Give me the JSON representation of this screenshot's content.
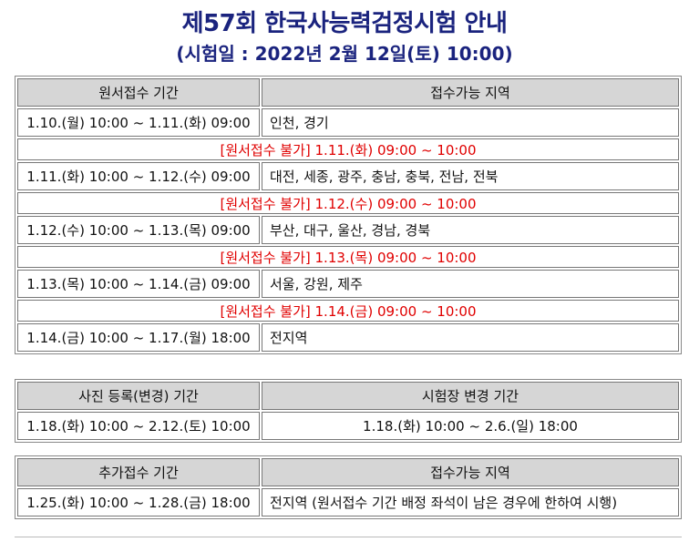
{
  "header": {
    "title": "제57회 한국사능력검정시험 안내",
    "subtitle": "(시험일 : 2022년 2월 12일(토) 10:00)"
  },
  "application_table": {
    "headers": [
      "원서접수 기간",
      "접수가능 지역"
    ],
    "rows": [
      {
        "period": "1.10.(월) 10:00 ~ 1.11.(화) 09:00",
        "region": "인천, 경기"
      },
      {
        "closed": "[원서접수 불가] 1.11.(화) 09:00 ~ 10:00"
      },
      {
        "period": "1.11.(화) 10:00 ~ 1.12.(수) 09:00",
        "region": "대전, 세종, 광주, 충남, 충북, 전남, 전북"
      },
      {
        "closed": "[원서접수 불가] 1.12.(수) 09:00 ~ 10:00"
      },
      {
        "period": "1.12.(수) 10:00 ~ 1.13.(목) 09:00",
        "region": "부산, 대구, 울산, 경남, 경북"
      },
      {
        "closed": "[원서접수 불가] 1.13.(목) 09:00 ~ 10:00"
      },
      {
        "period": "1.13.(목) 10:00 ~ 1.14.(금) 09:00",
        "region": "서울, 강원, 제주"
      },
      {
        "closed": "[원서접수 불가] 1.14.(금) 09:00 ~ 10:00"
      },
      {
        "period": "1.14.(금) 10:00 ~ 1.17.(월) 18:00",
        "region": "전지역"
      }
    ]
  },
  "change_table": {
    "headers": [
      "사진 등록(변경) 기간",
      "시험장 변경 기간"
    ],
    "photo_period": "1.18.(화) 10:00 ~ 2.12.(토) 10:00",
    "venue_period": "1.18.(화) 10:00 ~ 2.6.(일) 18:00"
  },
  "additional_table": {
    "headers": [
      "추가접수 기간",
      "접수가능 지역"
    ],
    "period": "1.25.(화) 10:00 ~ 1.28.(금) 18:00",
    "region": "전지역 (원서접수 기간 배정 좌석이 남은 경우에 한하여 시행)"
  },
  "colors": {
    "title": "#1a237e",
    "closed_text": "#e00000",
    "header_bg": "#d6d6d6"
  }
}
